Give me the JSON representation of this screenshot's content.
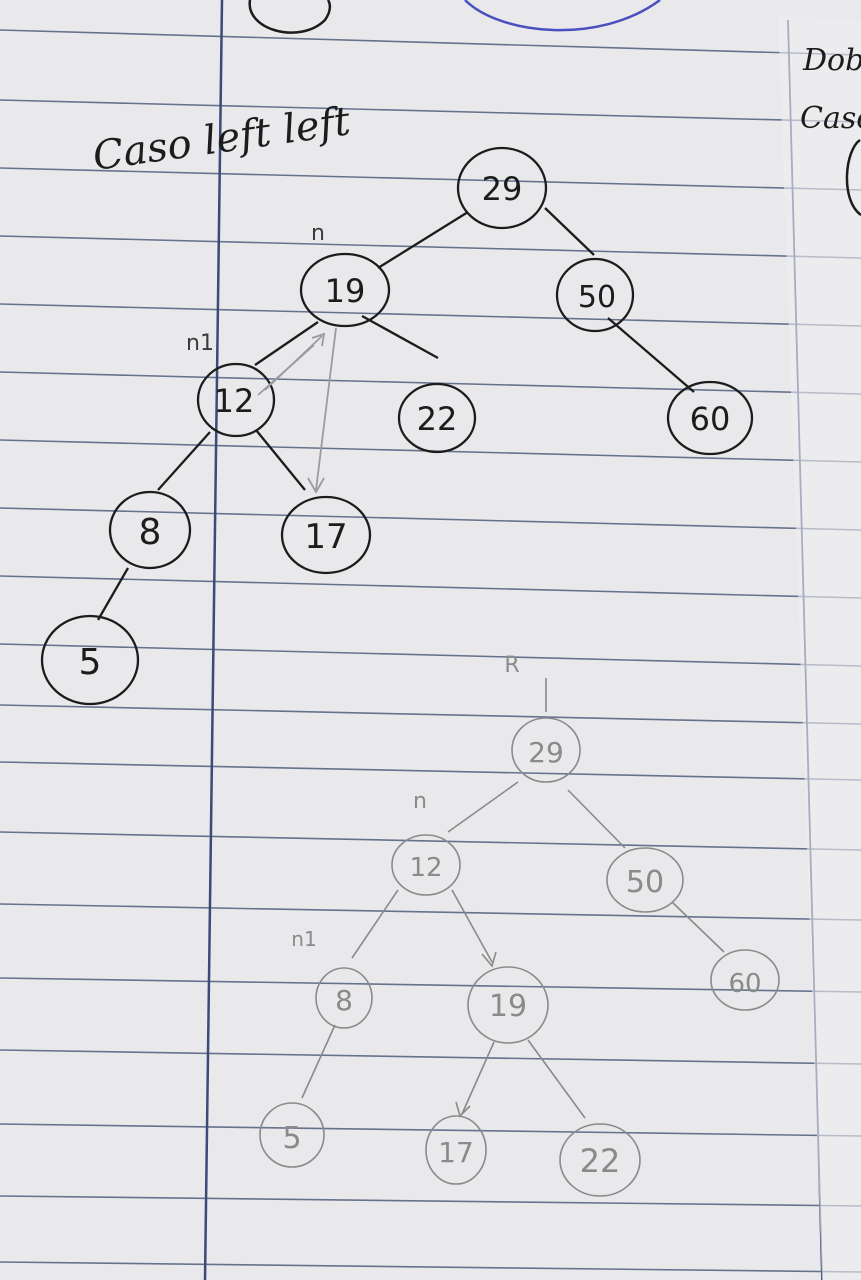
{
  "page": {
    "heading": "Caso left left",
    "margin_note_line1": "Dob",
    "margin_note_line2": "Caso"
  },
  "tree_before": {
    "label_root_marker": "n",
    "label_child_marker": "n1",
    "nodes": [
      {
        "id": "a29",
        "value": "29"
      },
      {
        "id": "a19",
        "value": "19"
      },
      {
        "id": "a50",
        "value": "50"
      },
      {
        "id": "a12",
        "value": "12"
      },
      {
        "id": "a22",
        "value": "22"
      },
      {
        "id": "a60",
        "value": "60"
      },
      {
        "id": "a8",
        "value": "8"
      },
      {
        "id": "a17",
        "value": "17"
      },
      {
        "id": "a5",
        "value": "5"
      }
    ]
  },
  "tree_after": {
    "label_pointer_r": "R",
    "label_root_marker": "n",
    "label_child_marker": "n1",
    "nodes": [
      {
        "id": "b29",
        "value": "29"
      },
      {
        "id": "b12",
        "value": "12"
      },
      {
        "id": "b50",
        "value": "50"
      },
      {
        "id": "b8",
        "value": "8"
      },
      {
        "id": "b19",
        "value": "19"
      },
      {
        "id": "b60",
        "value": "60"
      },
      {
        "id": "b5",
        "value": "5"
      },
      {
        "id": "b17",
        "value": "17"
      },
      {
        "id": "b22",
        "value": "22"
      }
    ]
  },
  "colors": {
    "paper": "#e9e9ec",
    "rule_line": "#3b4a6e",
    "margin_line": "#3c4a78",
    "ink_dark": "#1c1c1c",
    "ink_pencil": "#8a8a8a",
    "ink_blue": "#4a4fc0"
  }
}
